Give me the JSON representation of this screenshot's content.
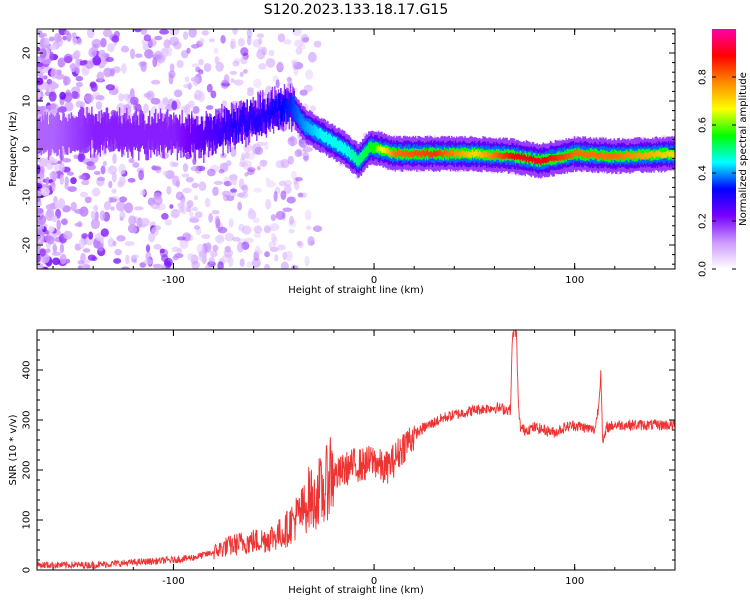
{
  "title": "S120.2023.133.18.17.G15",
  "chart_data": [
    {
      "type": "heatmap",
      "xlabel": "Height of straight line (km)",
      "ylabel": "Frequency (Hz)",
      "xlim": [
        -168,
        150
      ],
      "ylim": [
        -25,
        25
      ],
      "x_ticks": [
        -100,
        0,
        100
      ],
      "y_ticks": [
        -20,
        -10,
        0,
        10,
        20
      ],
      "colorbar": {
        "label": "Normalized spectral amplitude",
        "range": [
          0,
          1
        ],
        "ticks": [
          0.0,
          0.2,
          0.4,
          0.6,
          0.8
        ],
        "colormap": [
          "#ffffff",
          "#cc99ff",
          "#7700ff",
          "#0000ff",
          "#00ffff",
          "#00ff00",
          "#ffff00",
          "#ff8800",
          "#ff0000",
          "#ff00aa"
        ]
      },
      "ridge": [
        {
          "x": -160,
          "y": 3,
          "amp": 0.15
        },
        {
          "x": -140,
          "y": 3.5,
          "amp": 0.2
        },
        {
          "x": -120,
          "y": 3,
          "amp": 0.2
        },
        {
          "x": -100,
          "y": 3,
          "amp": 0.2
        },
        {
          "x": -85,
          "y": 2.5,
          "amp": 0.25
        },
        {
          "x": -70,
          "y": 5,
          "amp": 0.3
        },
        {
          "x": -55,
          "y": 7,
          "amp": 0.3
        },
        {
          "x": -42,
          "y": 9,
          "amp": 0.35
        },
        {
          "x": -35,
          "y": 5,
          "amp": 0.4
        },
        {
          "x": -25,
          "y": 2.5,
          "amp": 0.45
        },
        {
          "x": -15,
          "y": 0,
          "amp": 0.45
        },
        {
          "x": -8,
          "y": -2.5,
          "amp": 0.5
        },
        {
          "x": -2,
          "y": 0.5,
          "amp": 0.55
        },
        {
          "x": 10,
          "y": -1,
          "amp": 0.8
        },
        {
          "x": 30,
          "y": -1,
          "amp": 0.85
        },
        {
          "x": 50,
          "y": -1,
          "amp": 0.7
        },
        {
          "x": 70,
          "y": -1.5,
          "amp": 0.9
        },
        {
          "x": 83,
          "y": -2.5,
          "amp": 0.9
        },
        {
          "x": 100,
          "y": -1,
          "amp": 0.8
        },
        {
          "x": 120,
          "y": -1.5,
          "amp": 0.8
        },
        {
          "x": 150,
          "y": -1,
          "amp": 0.7
        }
      ]
    },
    {
      "type": "line",
      "xlabel": "Height of straight line (km)",
      "ylabel": "SNR (10 * v/v)",
      "xlim": [
        -168,
        150
      ],
      "ylim": [
        0,
        480
      ],
      "x_ticks": [
        -100,
        0,
        100
      ],
      "y_ticks": [
        0,
        100,
        200,
        300,
        400
      ],
      "color": "#ee3333",
      "series": [
        {
          "x": [
            -168,
            -140,
            -120,
            -100,
            -90,
            -80,
            -75,
            -65,
            -55,
            -45,
            -40,
            -35,
            -32,
            -30,
            -28,
            -25,
            -22,
            -20,
            -18,
            -15,
            -10,
            -5,
            0,
            5,
            10,
            15,
            20,
            25,
            30,
            35,
            40,
            50,
            60,
            68,
            69,
            70,
            71,
            72,
            73,
            75,
            80,
            90,
            95,
            100,
            110,
            112,
            113,
            114,
            116,
            120,
            130,
            140,
            150
          ],
          "y": [
            10,
            10,
            15,
            20,
            25,
            35,
            45,
            55,
            60,
            75,
            100,
            120,
            150,
            130,
            160,
            150,
            200,
            190,
            190,
            200,
            210,
            210,
            220,
            200,
            220,
            250,
            270,
            285,
            295,
            305,
            310,
            320,
            325,
            320,
            470,
            480,
            470,
            320,
            285,
            280,
            285,
            275,
            285,
            290,
            280,
            330,
            400,
            250,
            285,
            290,
            290,
            290,
            290
          ]
        }
      ]
    }
  ]
}
